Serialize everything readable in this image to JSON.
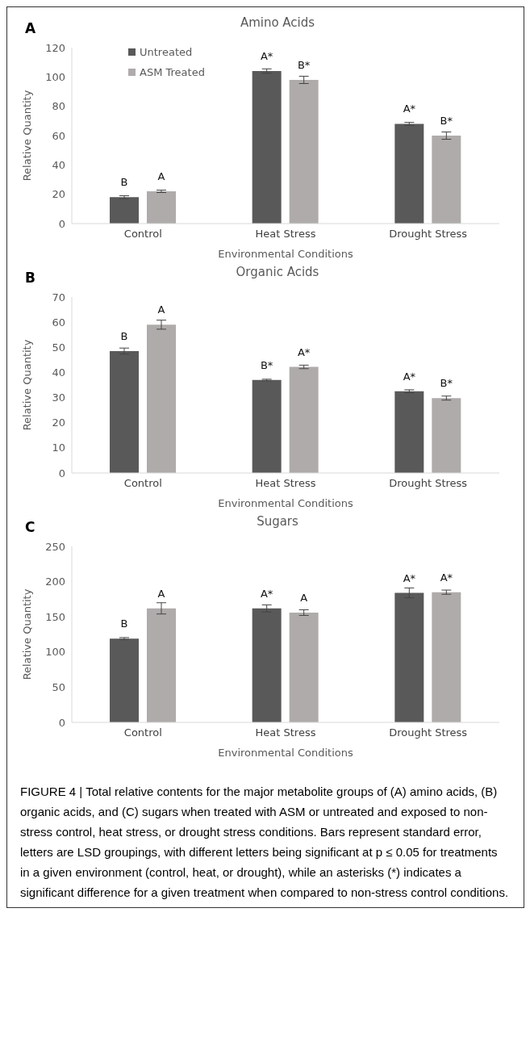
{
  "chart_data": [
    {
      "type": "bar",
      "title": "Amino Acids",
      "xlabel": "Environmental Conditions",
      "ylabel": "Relative Quantity",
      "annotations": [
        "A"
      ],
      "categories": [
        "Control",
        "Heat Stress",
        "Drought Stress"
      ],
      "series": [
        {
          "name": "Untreated",
          "color": "#595959",
          "values": [
            18,
            104,
            68
          ],
          "errors": [
            1,
            1.5,
            1
          ],
          "value_labels": [
            "B",
            "A*",
            "A*"
          ]
        },
        {
          "name": "ASM Treated",
          "color": "#afabab",
          "values": [
            22,
            98,
            60
          ],
          "errors": [
            0.8,
            2.5,
            2.5
          ],
          "value_labels": [
            "A",
            "B*",
            "B*"
          ]
        }
      ],
      "ylim": [
        0,
        120
      ],
      "yticks": [
        0,
        20,
        40,
        60,
        80,
        100,
        120
      ],
      "grid": false,
      "legend": "top left"
    },
    {
      "type": "bar",
      "title": "Organic Acids",
      "xlabel": "Environmental Conditions",
      "ylabel": "Relative Quantity",
      "annotations": [
        "B"
      ],
      "categories": [
        "Control",
        "Heat Stress",
        "Drought Stress"
      ],
      "series": [
        {
          "color": "#595959",
          "values": [
            48.5,
            37,
            32.5
          ],
          "errors": [
            1.2,
            0.3,
            0.6
          ],
          "value_labels": [
            "B",
            "B*",
            "A*"
          ]
        },
        {
          "color": "#afabab",
          "values": [
            59,
            42.2,
            29.8
          ],
          "errors": [
            1.8,
            0.7,
            0.8
          ],
          "value_labels": [
            "A",
            "A*",
            "B*"
          ]
        }
      ],
      "ylim": [
        0,
        70
      ],
      "yticks": [
        0,
        10,
        20,
        30,
        40,
        50,
        60,
        70
      ],
      "grid": false,
      "legend": false
    },
    {
      "type": "bar",
      "title": "Sugars",
      "xlabel": "Environmental Conditions",
      "ylabel": "Relative Quantity",
      "annotations": [
        "C",
        "FIGURE 4 | Total relative contents for the major metabolite groups of (A) amino acids, (B) organic acids, and (C) sugars when treated with ASM or untreated and exposed to non-stress control, heat stress, or drought stress conditions. Bars represent standard error, letters are LSD groupings, with different letters being significant at p ≤ 0.05 for treatments in a given environment (control, heat, or drought), while an asterisks (*) indicates a significant difference for a given treatment when compared to non-stress control conditions."
      ],
      "categories": [
        "Control",
        "Heat Stress",
        "Drought Stress"
      ],
      "series": [
        {
          "color": "#595959",
          "values": [
            119,
            162,
            184
          ],
          "errors": [
            1.5,
            5,
            7
          ],
          "value_labels": [
            "B",
            "A*",
            "A*"
          ]
        },
        {
          "color": "#afabab",
          "values": [
            162,
            156,
            185
          ],
          "errors": [
            8,
            4,
            3
          ],
          "value_labels": [
            "A",
            "A",
            "A*"
          ]
        }
      ],
      "ylim": [
        0,
        250
      ],
      "yticks": [
        0,
        50,
        100,
        150,
        200,
        250
      ],
      "grid": false,
      "legend": false
    }
  ]
}
